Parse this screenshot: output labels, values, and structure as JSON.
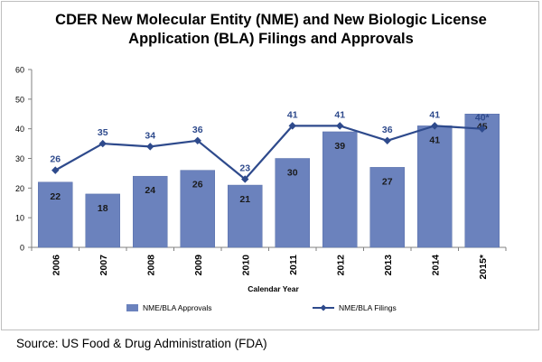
{
  "chart_data": {
    "type": "bar",
    "title_lines": [
      "CDER New Molecular Entity (NME) and New Biologic License",
      "Application (BLA) Filings and Approvals"
    ],
    "xlabel": "Calendar Year",
    "ylabel": "",
    "ylim": [
      0,
      60
    ],
    "yticks": [
      0,
      10,
      20,
      30,
      40,
      50,
      60
    ],
    "categories": [
      "2006",
      "2007",
      "2008",
      "2009",
      "2010",
      "2011",
      "2012",
      "2013",
      "2014",
      "2015*"
    ],
    "series": [
      {
        "name": "NME/BLA Approvals",
        "type": "bar",
        "color": "#6b82bd",
        "values": [
          22,
          18,
          24,
          26,
          21,
          30,
          39,
          27,
          41,
          45
        ],
        "labels": [
          "22",
          "18",
          "24",
          "26",
          "21",
          "30",
          "39",
          "27",
          "41",
          "45"
        ]
      },
      {
        "name": "NME/BLA Filings",
        "type": "line",
        "color": "#2e4a8c",
        "values": [
          26,
          35,
          34,
          36,
          23,
          41,
          41,
          36,
          41,
          40
        ],
        "labels": [
          "26",
          "35",
          "34",
          "36",
          "23",
          "41",
          "41",
          "36",
          "41",
          "40*"
        ]
      }
    ],
    "grid": false,
    "legend_position": "bottom"
  },
  "source": "Source: US Food & Drug Administration (FDA)"
}
